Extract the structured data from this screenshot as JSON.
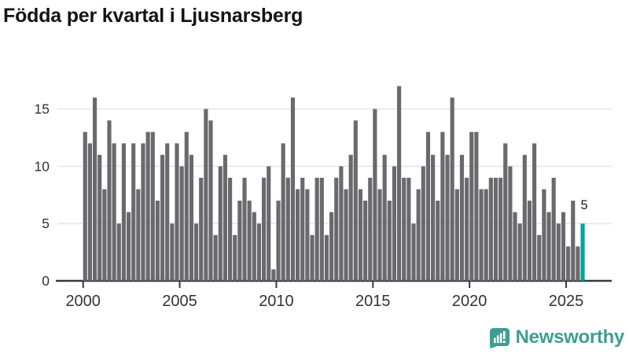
{
  "chart_data": {
    "type": "bar",
    "title": "Födda per kvartal i Ljusnarsberg",
    "x_start": "2000Q1",
    "x_end": "2025Q4",
    "frequency": "quarterly",
    "x_ticks": [
      2000,
      2005,
      2010,
      2015,
      2020,
      2025
    ],
    "y_ticks": [
      0,
      5,
      10,
      15
    ],
    "ylim": [
      0,
      17.5
    ],
    "grid": "horizontal",
    "values": [
      13,
      12,
      16,
      11,
      8,
      14,
      12,
      5,
      12,
      6,
      12,
      8,
      12,
      13,
      13,
      7,
      11,
      12,
      5,
      12,
      10,
      13,
      11,
      5,
      9,
      15,
      14,
      4,
      10,
      11,
      9,
      4,
      7,
      9,
      7,
      6,
      5,
      9,
      10,
      1,
      7,
      12,
      9,
      16,
      8,
      9,
      8,
      4,
      9,
      9,
      4,
      6,
      9,
      10,
      8,
      11,
      14,
      8,
      7,
      9,
      15,
      8,
      11,
      7,
      10,
      17,
      9,
      9,
      5,
      8,
      10,
      13,
      11,
      7,
      13,
      11,
      16,
      8,
      11,
      9,
      13,
      13,
      8,
      8,
      9,
      9,
      9,
      12,
      10,
      6,
      5,
      11,
      7,
      12,
      4,
      8,
      6,
      9,
      5,
      6,
      3,
      7,
      3,
      5
    ],
    "highlight": {
      "index": 103,
      "period": "2025Q4",
      "label": "5"
    },
    "colors": {
      "bar": "#69696e",
      "highlight": "#00a49b",
      "grid": "#e8e8e8",
      "axis": "#38383d",
      "tick_text": "#333333",
      "label_text": "#1c1c1c"
    }
  },
  "branding": {
    "name": "Newsworthy",
    "color": "#3d9e93"
  }
}
